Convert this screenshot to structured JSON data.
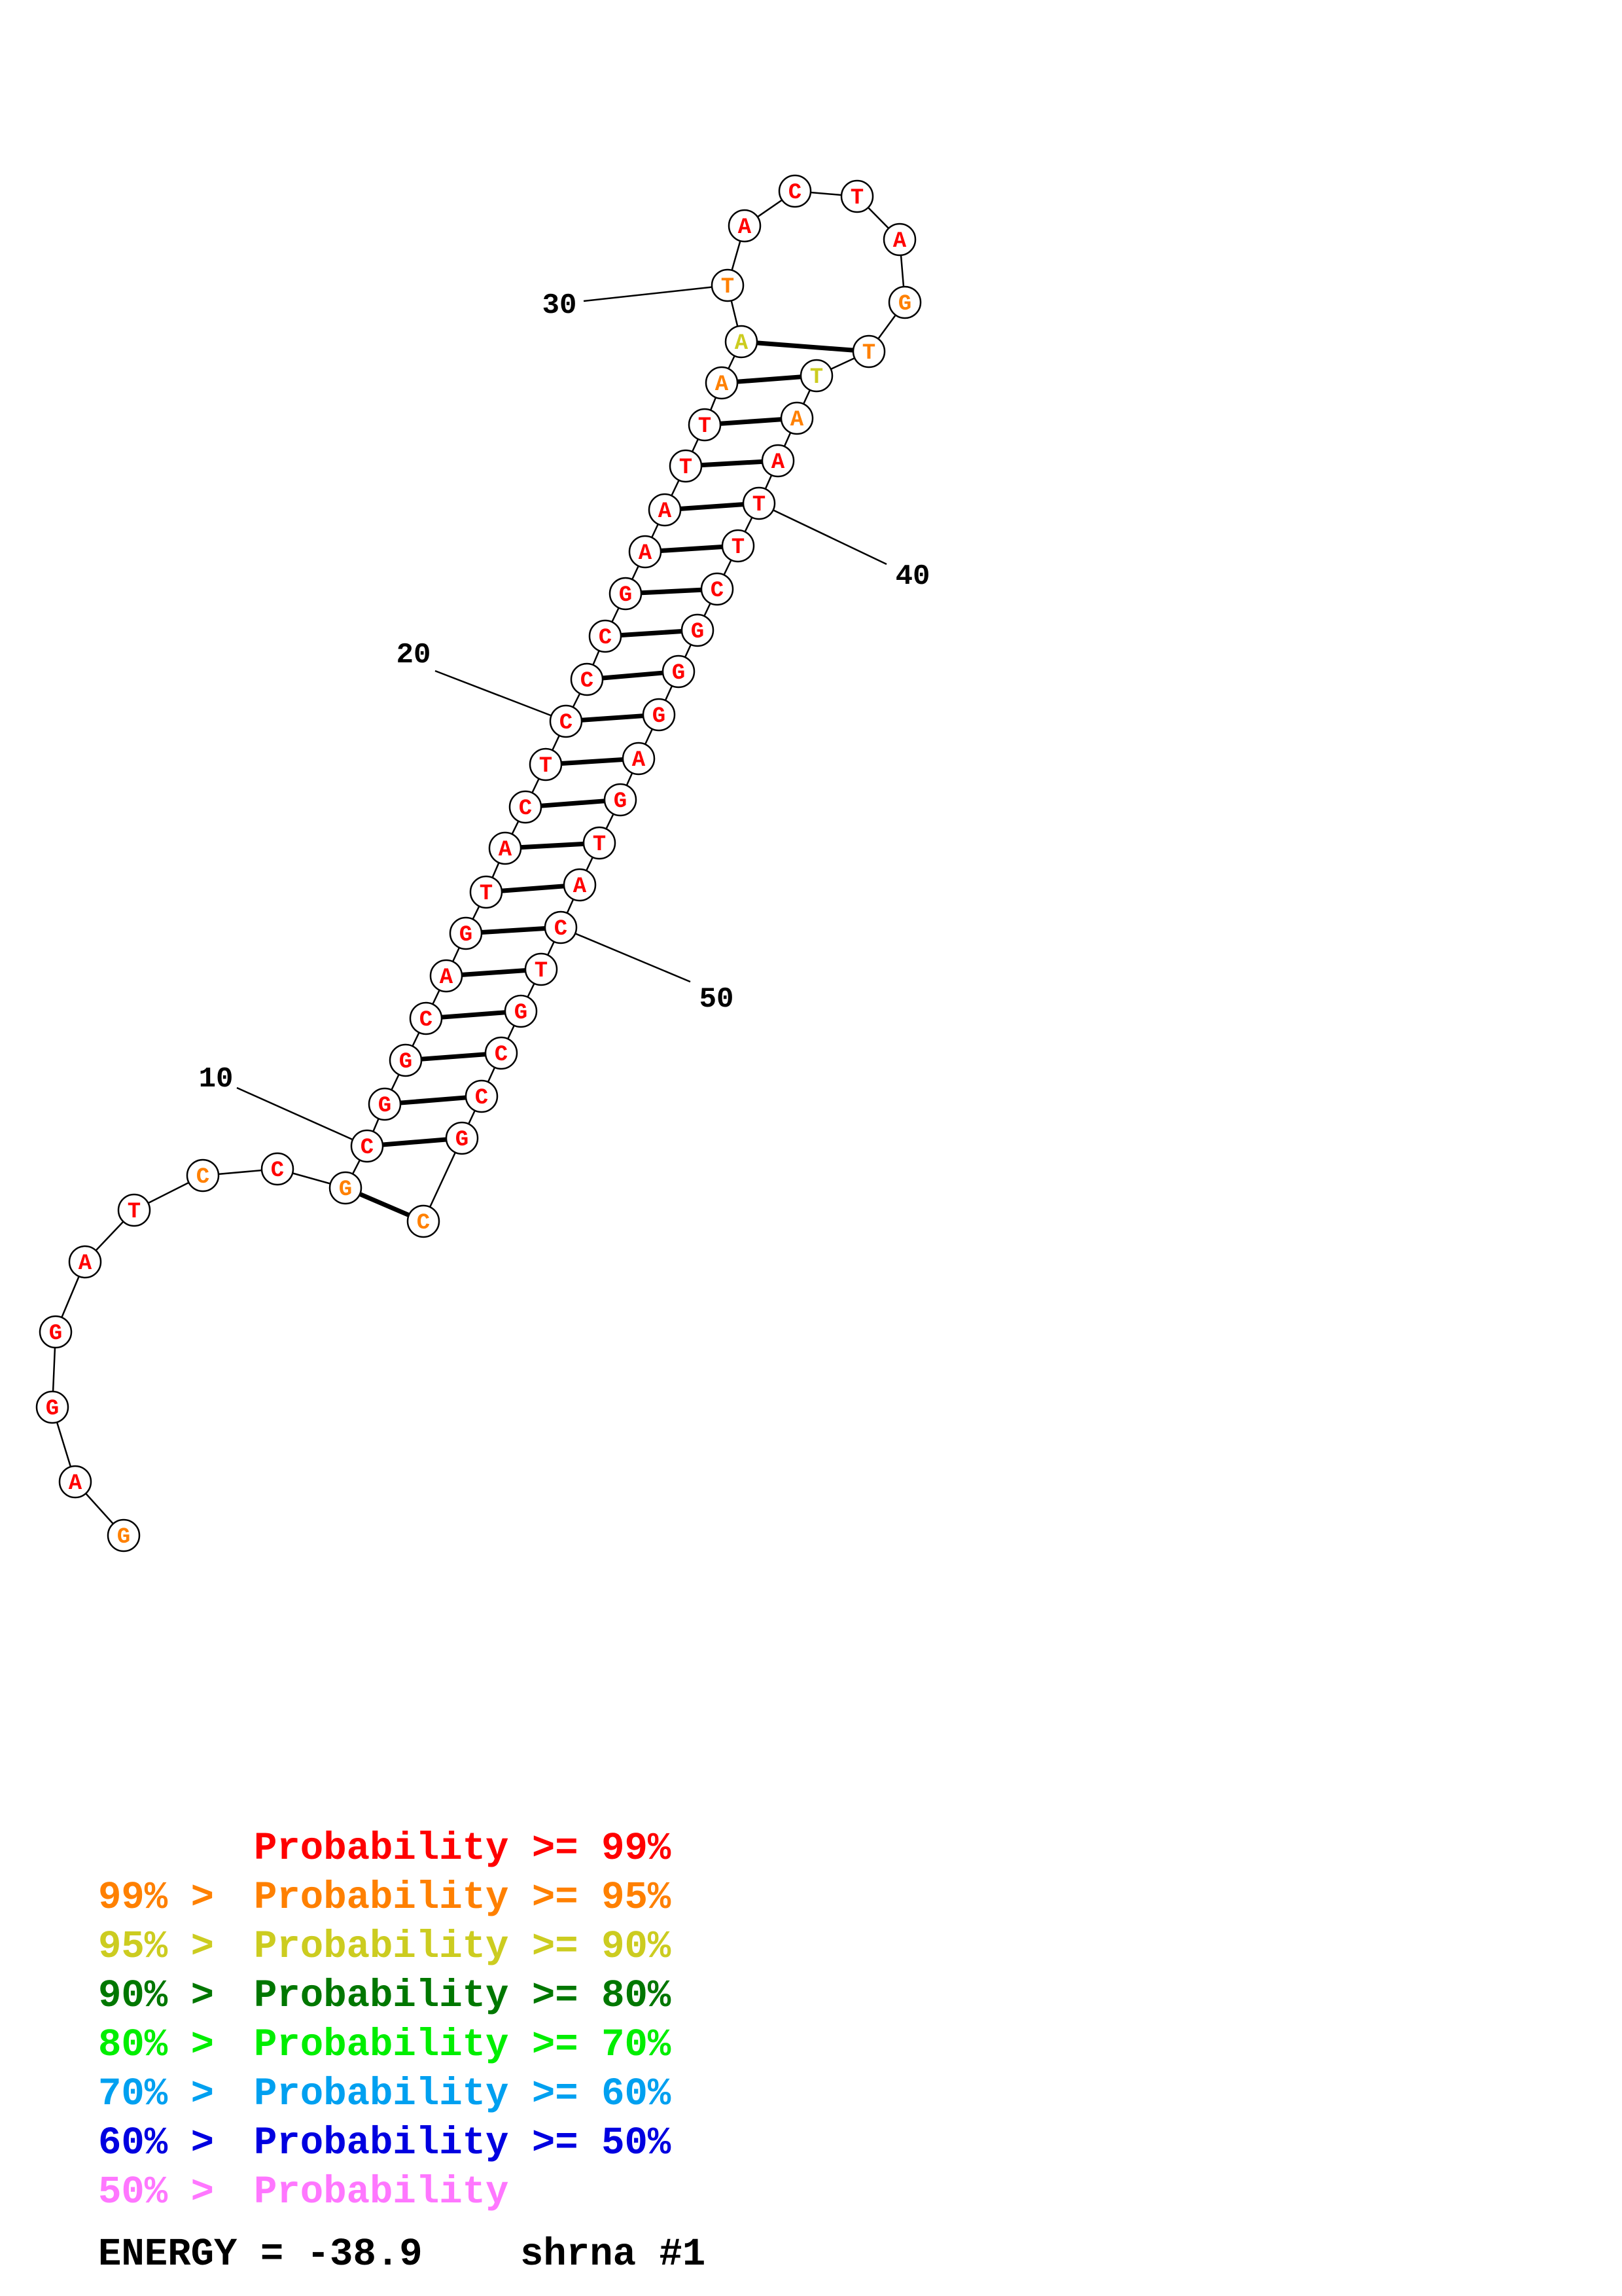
{
  "colors": {
    "p99": "#ff0000",
    "p95": "#ff8000",
    "p90": "#cccc20",
    "p80": "#007700",
    "p70": "#00ee00",
    "p60": "#00a0f0",
    "p50": "#0000e0",
    "plow": "#ff77ff",
    "ink": "#000000"
  },
  "structure": {
    "sequence": [
      "G",
      "A",
      "G",
      "G",
      "A",
      "T",
      "C",
      "C",
      "G",
      "C",
      "G",
      "G",
      "C",
      "A",
      "G",
      "T",
      "A",
      "C",
      "T",
      "C",
      "C",
      "C",
      "G",
      "A",
      "A",
      "T",
      "T",
      "A",
      "A",
      "T",
      "A",
      "C",
      "T",
      "A",
      "G",
      "T",
      "T",
      "A",
      "A",
      "T",
      "T",
      "C",
      "G",
      "G",
      "G",
      "A",
      "G",
      "T",
      "A",
      "C",
      "T",
      "G",
      "C",
      "C",
      "G",
      "C"
    ],
    "probability_class": [
      "p95",
      "p99",
      "p99",
      "p99",
      "p99",
      "p99",
      "p95",
      "p99",
      "p95",
      "p99",
      "p99",
      "p99",
      "p99",
      "p99",
      "p99",
      "p99",
      "p99",
      "p99",
      "p99",
      "p99",
      "p99",
      "p99",
      "p99",
      "p99",
      "p99",
      "p99",
      "p99",
      "p95",
      "p90",
      "p95",
      "p99",
      "p99",
      "p99",
      "p99",
      "p95",
      "p95",
      "p90",
      "p95",
      "p99",
      "p99",
      "p99",
      "p99",
      "p99",
      "p99",
      "p99",
      "p99",
      "p99",
      "p99",
      "p99",
      "p99",
      "p99",
      "p99",
      "p99",
      "p99",
      "p99",
      "p95"
    ],
    "pairs": [
      [
        9,
        56
      ],
      [
        10,
        55
      ],
      [
        11,
        54
      ],
      [
        12,
        53
      ],
      [
        13,
        52
      ],
      [
        14,
        51
      ],
      [
        15,
        50
      ],
      [
        16,
        49
      ],
      [
        17,
        48
      ],
      [
        18,
        47
      ],
      [
        19,
        46
      ],
      [
        20,
        45
      ],
      [
        21,
        44
      ],
      [
        22,
        43
      ],
      [
        23,
        42
      ],
      [
        24,
        41
      ],
      [
        25,
        40
      ],
      [
        26,
        39
      ],
      [
        27,
        38
      ],
      [
        28,
        37
      ],
      [
        29,
        36
      ]
    ],
    "position_labels": [
      {
        "text": "10",
        "index": 10
      },
      {
        "text": "20",
        "index": 20
      },
      {
        "text": "30",
        "index": 30
      },
      {
        "text": "40",
        "index": 40
      },
      {
        "text": "50",
        "index": 50
      }
    ]
  },
  "legend": [
    {
      "prefix": "",
      "label": "Probability >= 99%",
      "color_key": "p99"
    },
    {
      "prefix": "99% > ",
      "label": "Probability >= 95%",
      "color_key": "p95"
    },
    {
      "prefix": "95% > ",
      "label": "Probability >= 90%",
      "color_key": "p90"
    },
    {
      "prefix": "90% > ",
      "label": "Probability >= 80%",
      "color_key": "p80"
    },
    {
      "prefix": "80% > ",
      "label": "Probability >= 70%",
      "color_key": "p70"
    },
    {
      "prefix": "70% > ",
      "label": "Probability >= 60%",
      "color_key": "p60"
    },
    {
      "prefix": "60% > ",
      "label": "Probability >= 50%",
      "color_key": "p50"
    },
    {
      "prefix": "50% > ",
      "label": "Probability",
      "color_key": "plow"
    }
  ],
  "footer": {
    "energy_text": "ENERGY = -38.9",
    "name_text": "shrna #1"
  }
}
